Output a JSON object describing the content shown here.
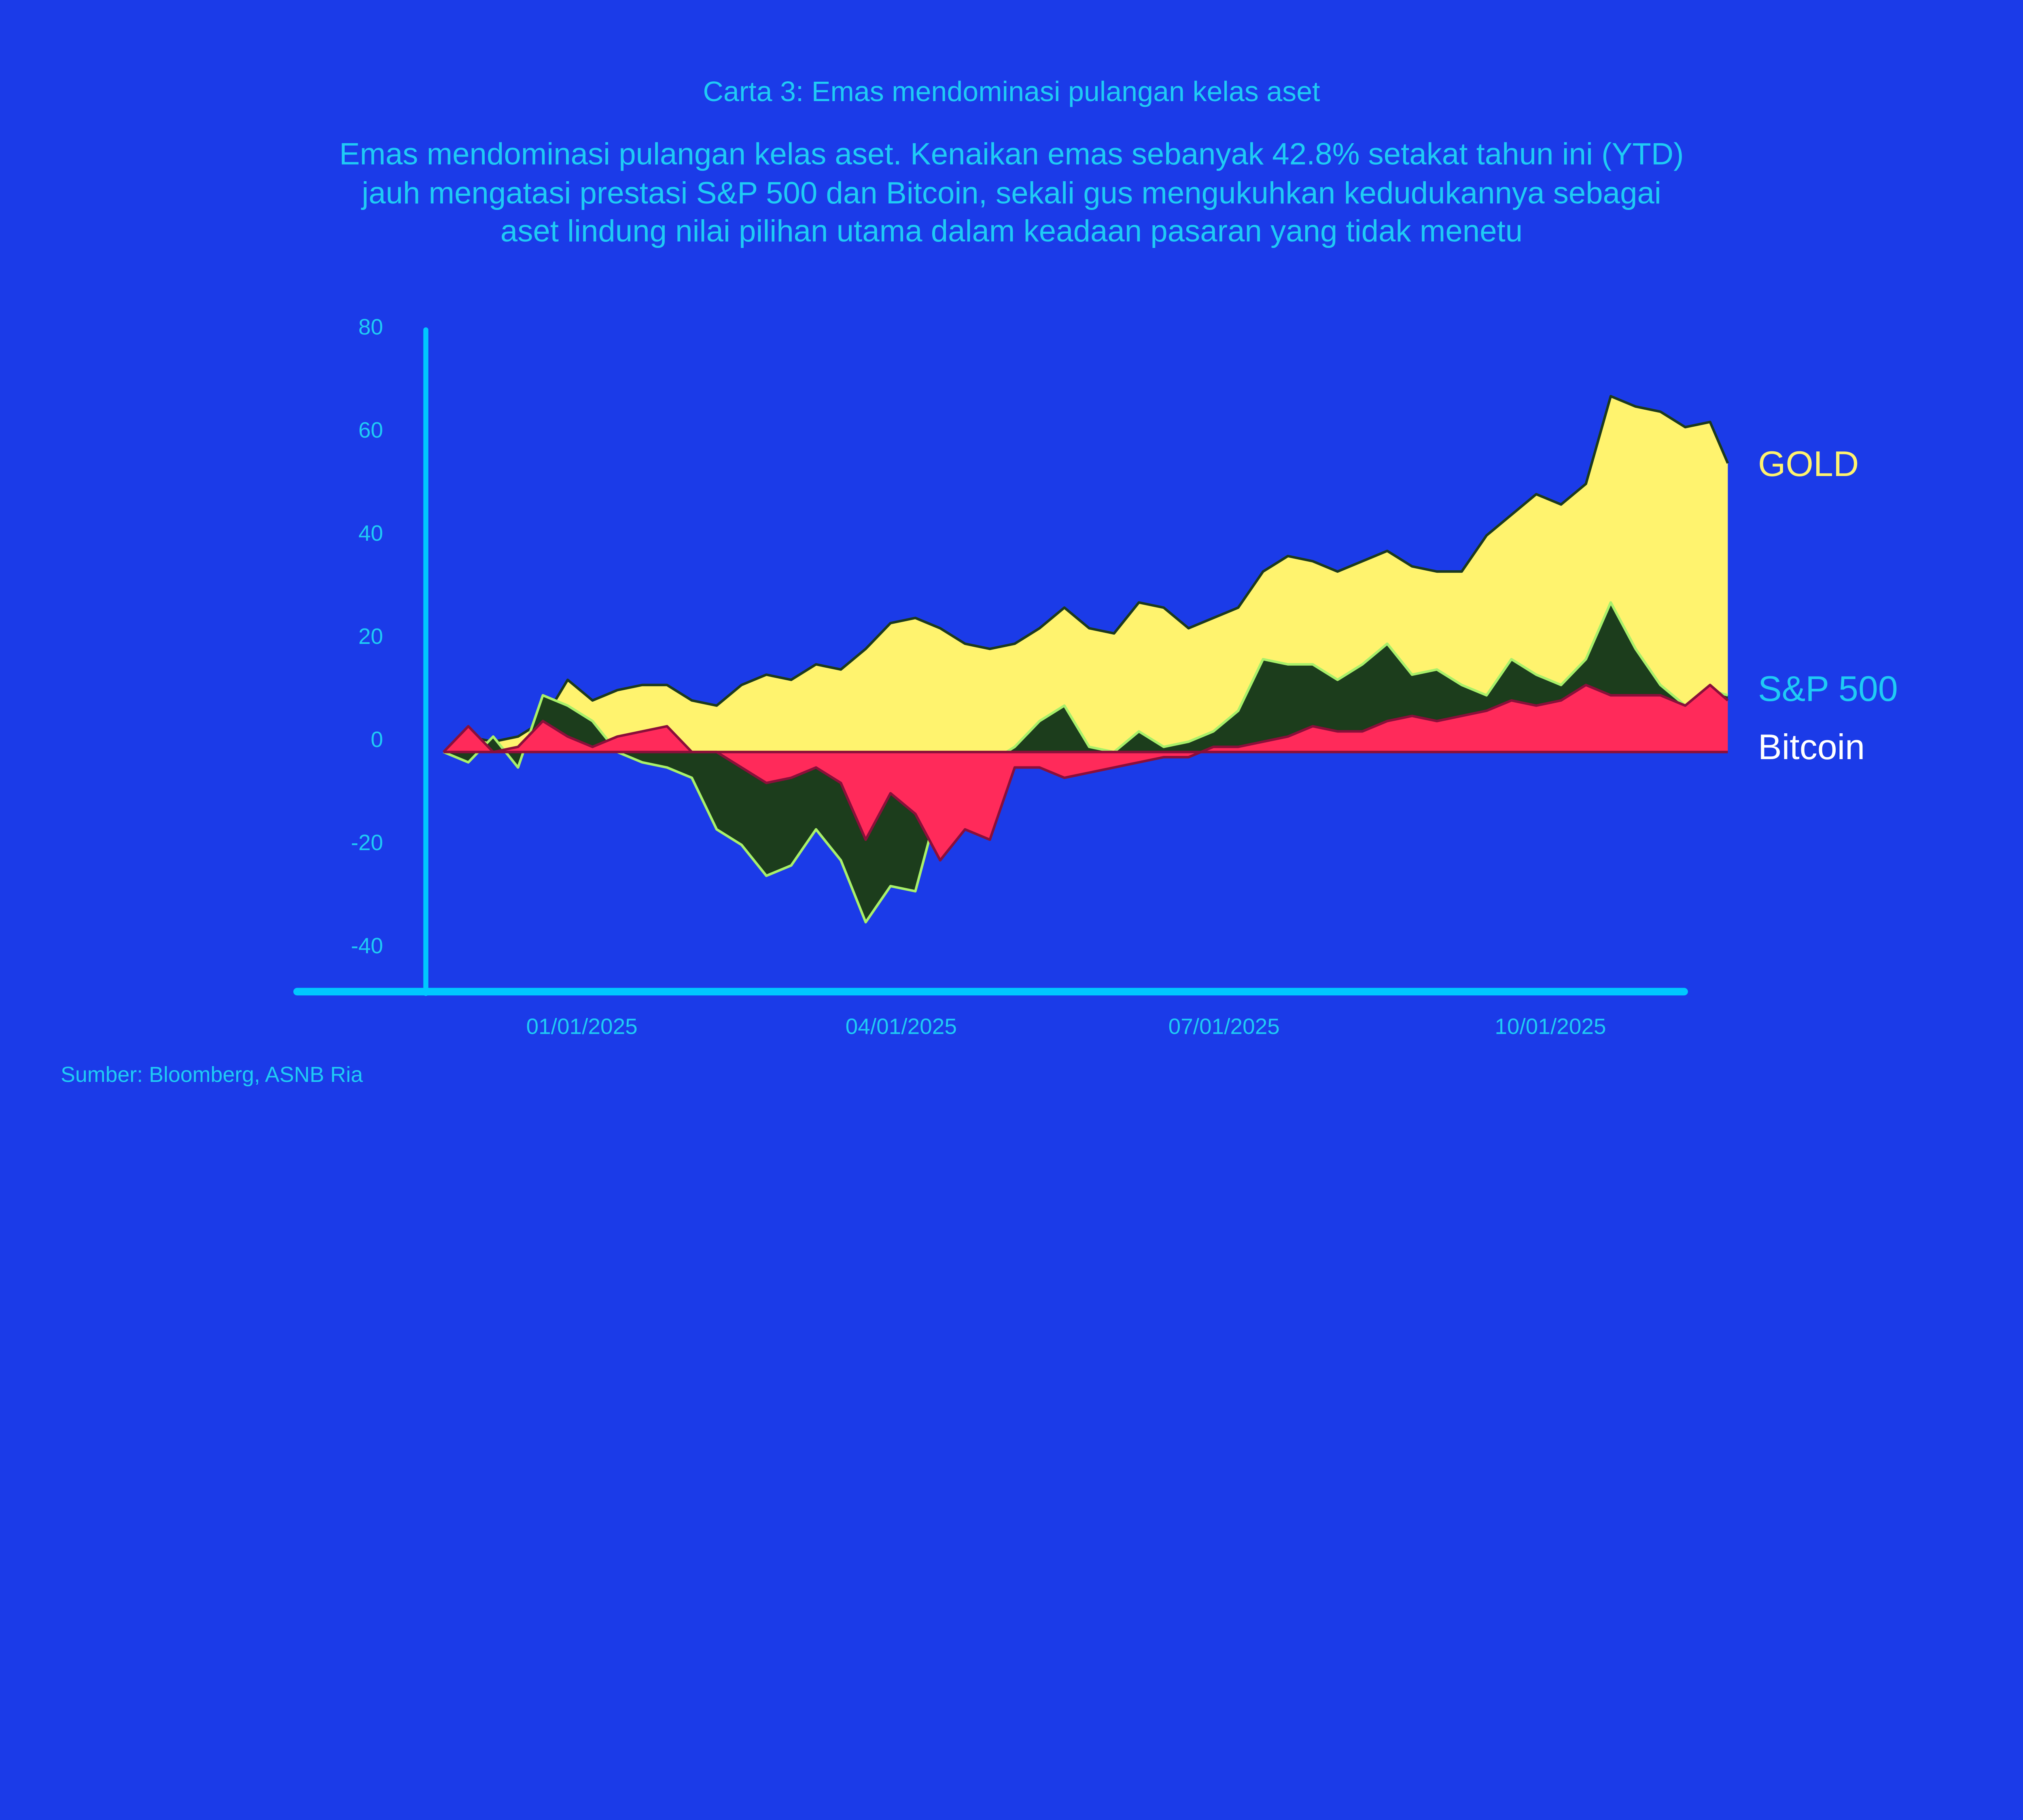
{
  "chart_data": {
    "type": "area",
    "title": "Carta 3: Emas mendominasi pulangan kelas aset",
    "subtitle": [
      "Emas mendominasi pulangan kelas aset. Kenaikan emas sebanyak 42.8% setakat tahun ini (YTD)",
      "jauh mengatasi prestasi S&P 500 dan Bitcoin, sekali gus mengukuhkan kedudukannya sebagai",
      "aset lindung nilai pilihan utama dalam keadaan pasaran yang tidak menetu"
    ],
    "source": "Sumber: Bloomberg, ASNB Ria",
    "xlabel": "",
    "ylabel": "",
    "ylim": [
      -45,
      80
    ],
    "y_ticks": [
      "80",
      "60",
      "40",
      "20",
      "0",
      "-20",
      "-40"
    ],
    "x_ticks": [
      {
        "date": "2025-01-01",
        "label": "01/01/2025"
      },
      {
        "date": "2025-04-01",
        "label": "04/01/2025"
      },
      {
        "date": "2025-07-01",
        "label": "07/01/2025"
      },
      {
        "date": "2025-10-01",
        "label": "10/01/2025"
      }
    ],
    "grid": false,
    "legend_placement": "right, direct labels at series ends",
    "x": [
      "2024-11-23",
      "2024-11-30",
      "2024-12-07",
      "2024-12-14",
      "2024-12-21",
      "2024-12-28",
      "2025-01-04",
      "2025-01-11",
      "2025-01-18",
      "2025-01-25",
      "2025-02-01",
      "2025-02-08",
      "2025-02-15",
      "2025-02-22",
      "2025-03-01",
      "2025-03-08",
      "2025-03-15",
      "2025-03-22",
      "2025-03-29",
      "2025-04-05",
      "2025-04-12",
      "2025-04-19",
      "2025-04-26",
      "2025-05-03",
      "2025-05-10",
      "2025-05-17",
      "2025-05-24",
      "2025-05-31",
      "2025-06-07",
      "2025-06-14",
      "2025-06-21",
      "2025-06-28",
      "2025-07-05",
      "2025-07-12",
      "2025-07-19",
      "2025-07-26",
      "2025-08-02",
      "2025-08-09",
      "2025-08-16",
      "2025-08-23",
      "2025-08-30",
      "2025-09-06",
      "2025-09-13",
      "2025-09-20",
      "2025-09-27",
      "2025-10-04",
      "2025-10-11",
      "2025-10-18",
      "2025-10-25",
      "2025-11-01",
      "2025-11-08",
      "2025-11-15",
      "2025-11-20"
    ],
    "series": [
      {
        "name": "GOLD",
        "color": "#fff36e",
        "stroke": "#1c3a1c",
        "values": [
          0,
          3,
          2,
          3,
          6,
          14,
          10,
          12,
          13,
          13,
          10,
          9,
          13,
          15,
          14,
          17,
          16,
          20,
          25,
          26,
          24,
          21,
          20,
          21,
          24,
          28,
          24,
          23,
          29,
          28,
          24,
          26,
          28,
          35,
          38,
          37,
          35,
          37,
          39,
          36,
          35,
          35,
          42,
          46,
          50,
          48,
          52,
          69,
          67,
          66,
          63,
          64,
          56
        ]
      },
      {
        "name": "S&P 500",
        "color": "#1c3d1c",
        "stroke": "#a8f06a",
        "values": [
          0,
          -2,
          3,
          -3,
          11,
          9,
          6,
          0,
          -2,
          -3,
          -5,
          -15,
          -18,
          -24,
          -22,
          -15,
          -21,
          -33,
          -26,
          -27,
          -9,
          -4,
          -2,
          1,
          6,
          9,
          1,
          0,
          4,
          1,
          2,
          4,
          8,
          18,
          17,
          17,
          14,
          17,
          21,
          15,
          16,
          13,
          11,
          18,
          15,
          13,
          18,
          29,
          20,
          13,
          9,
          12,
          11
        ]
      },
      {
        "name": "Bitcoin",
        "color": "#ff2a5a",
        "stroke": "#8a0f3a",
        "values": [
          0,
          5,
          0,
          1,
          6,
          3,
          1,
          3,
          4,
          5,
          0,
          0,
          -3,
          -6,
          -5,
          -3,
          -6,
          -17,
          -8,
          -12,
          -21,
          -15,
          -17,
          -3,
          -3,
          -5,
          -4,
          -3,
          -2,
          -1,
          -1,
          1,
          1,
          2,
          3,
          5,
          4,
          4,
          6,
          7,
          6,
          7,
          8,
          10,
          9,
          10,
          13,
          11,
          11,
          11,
          9,
          13,
          10
        ]
      }
    ]
  },
  "colors": {
    "background": "#1b3be8",
    "text": "#1fcbf5",
    "axis": "#00c8ff",
    "bitcoin_label": "#ffffff"
  }
}
